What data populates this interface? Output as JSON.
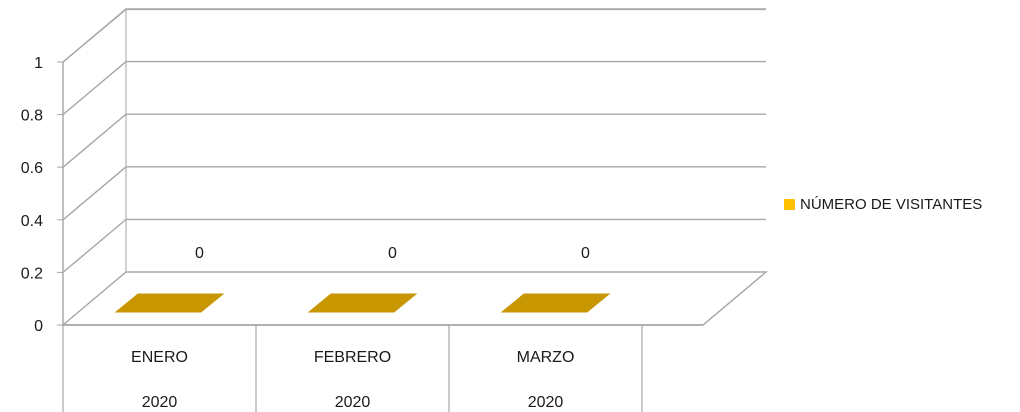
{
  "chart_data": {
    "type": "bar",
    "style": "3d-column",
    "categories": [
      {
        "label": "ENERO",
        "year": "2020"
      },
      {
        "label": "FEBRERO",
        "year": "2020"
      },
      {
        "label": "MARZO",
        "year": "2020"
      }
    ],
    "series": [
      {
        "name": "NÚMERO DE VISITANTES",
        "values": [
          0,
          0,
          0
        ],
        "color": "#FFC000"
      }
    ],
    "data_labels": [
      "0",
      "0",
      "0"
    ],
    "y_ticks": [
      "0",
      "0.2",
      "0.4",
      "0.6",
      "0.8",
      "1"
    ],
    "ylim": [
      0,
      1
    ],
    "grid": true,
    "legend_position": "right",
    "colors": {
      "gridline": "#a6a6a6",
      "bar_top": "#C89600"
    }
  }
}
